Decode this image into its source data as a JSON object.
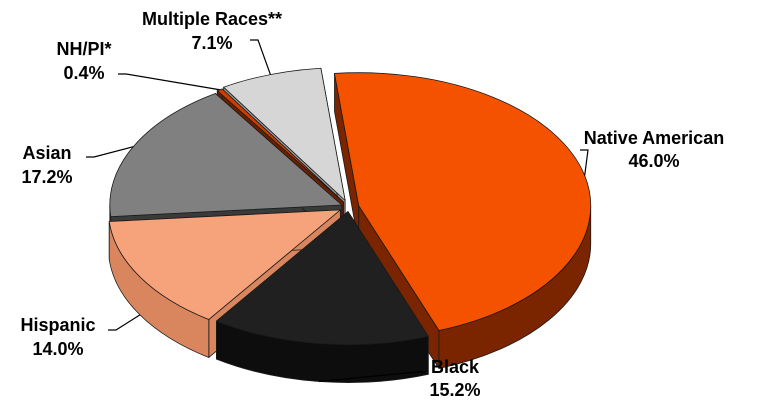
{
  "chart_data": {
    "type": "pie",
    "style": "3d-exploded",
    "title": "",
    "slices": [
      {
        "name": "Native American",
        "value": 46.0,
        "value_label": "46.0%",
        "color": "#f55200",
        "side_color": "#7a2400"
      },
      {
        "name": "Black",
        "value": 15.2,
        "value_label": "15.2%",
        "color": "#202020",
        "side_color": "#0d0d0d"
      },
      {
        "name": "Hispanic",
        "value": 14.0,
        "value_label": "14.0%",
        "color": "#f6a27a",
        "side_color": "#d9855e"
      },
      {
        "name": "Asian",
        "value": 17.2,
        "value_label": "17.2%",
        "color": "#808080",
        "side_color": "#3a3a3a"
      },
      {
        "name": "NH/PI*",
        "value": 0.4,
        "value_label": "0.4%",
        "color": "#cc3e00",
        "side_color": "#6a2000"
      },
      {
        "name": "Multiple Races**",
        "value": 7.1,
        "value_label": "7.1%",
        "color": "#d6d6d6",
        "side_color": "#9a9a9a"
      }
    ]
  }
}
